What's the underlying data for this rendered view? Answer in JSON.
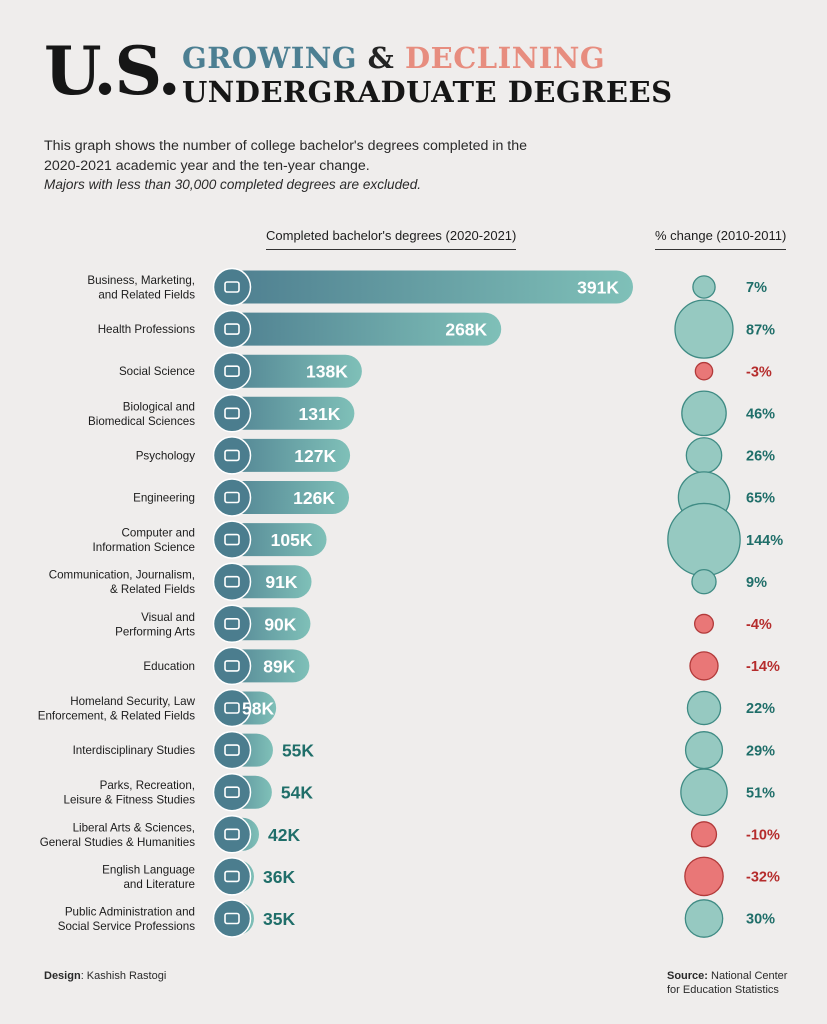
{
  "header": {
    "title_main": "U.S.",
    "title_growing": "GROWING",
    "title_amp": "&",
    "title_declining": "DECLINING",
    "title_line2": "UNDERGRADUATE DEGREES",
    "intro": "This graph shows the number of college bachelor's degrees completed in the 2020-2021 academic year and the ten-year change.",
    "note": "Majors with less than 30,000 completed degrees are excluded."
  },
  "columns": {
    "degrees_header": "Completed bachelor's degrees (2020-2021)",
    "change_header": "% change (2010-2011)"
  },
  "footer": {
    "design_label": "Design",
    "design_value": ": Kashish Rastogi",
    "source_label": "Source:",
    "source_value_1": " National Center",
    "source_value_2": "for Education Statistics"
  },
  "colors": {
    "bar_dark": "#4d7d8f",
    "bar_light": "#7fc0b8",
    "positive_circle": "#96c9c1",
    "positive_text": "#1f6e69",
    "negative_circle": "#e97777",
    "negative_text": "#b52c2c"
  },
  "chart_data": {
    "type": "bar",
    "orientation": "horizontal",
    "categories": [
      "Business, Marketing,|and Related Fields",
      "Health Professions",
      "Social Science",
      "Biological and|Biomedical Sciences",
      "Psychology",
      "Engineering",
      "Computer and|Information Science",
      "Communication, Journalism,|& Related Fields",
      "Visual and|Performing Arts",
      "Education",
      "Homeland Security, Law|Enforcement, & Related Fields",
      "Interdisciplinary Studies",
      "Parks, Recreation,|Leisure & Fitness Studies",
      "Liberal Arts & Sciences,|General Studies & Humanities",
      "English Language|and Literature",
      "Public Administration and|Social Service Professions"
    ],
    "icons": [
      "handshake-icon",
      "doctor-icon",
      "book-icon",
      "cell-icon",
      "brain-head-icon",
      "graduation-cap-icon",
      "computer-user-icon",
      "meeting-icon",
      "theater-masks-icon",
      "classroom-icon",
      "handcuffs-icon",
      "head-gears-icon",
      "dumbbell-icon",
      "palette-icon",
      "book-cover-icon",
      "support-person-icon"
    ],
    "series": [
      {
        "name": "Completed bachelor's degrees (2020-2021)",
        "values": [
          391,
          268,
          138,
          131,
          127,
          126,
          105,
          91,
          90,
          89,
          58,
          55,
          54,
          42,
          36,
          35
        ],
        "labels": [
          "391K",
          "268K",
          "138K",
          "131K",
          "127K",
          "126K",
          "105K",
          "91K",
          "90K",
          "89K",
          "58K",
          "55K",
          "54K",
          "42K",
          "36K",
          "35K"
        ]
      },
      {
        "name": "% change (2010-2011)",
        "values": [
          7,
          87,
          -3,
          46,
          26,
          65,
          144,
          9,
          -4,
          -14,
          22,
          29,
          51,
          -10,
          -32,
          30
        ],
        "labels": [
          "7%",
          "87%",
          "-3%",
          "46%",
          "26%",
          "65%",
          "144%",
          "9%",
          "-4%",
          "-14%",
          "22%",
          "29%",
          "51%",
          "-10%",
          "-32%",
          "30%"
        ]
      }
    ]
  }
}
